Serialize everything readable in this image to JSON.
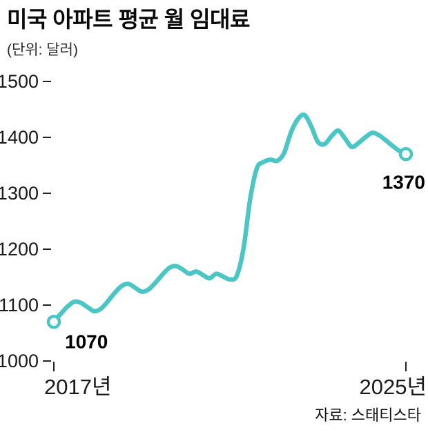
{
  "header": {
    "title": "미국 아파트 평균 월 임대료",
    "unit": "(단위: 달러)"
  },
  "footer": {
    "source": "자료: 스태티스타"
  },
  "chart_data": {
    "type": "line",
    "title": "미국 아파트 평균 월 임대료",
    "unit_label": "(단위: 달러)",
    "x_start_label": "2017년",
    "x_end_label": "2025년",
    "ylim": [
      1000,
      1500
    ],
    "yticks": [
      1000,
      1100,
      1200,
      1300,
      1400,
      1500
    ],
    "line_color": "#4cc5c5",
    "grid": false,
    "legend": false,
    "start_value": 1070,
    "end_value": 1370,
    "start_annotation": "1070",
    "end_annotation": "1370",
    "values": [
      1070,
      1084,
      1097,
      1106,
      1104,
      1096,
      1089,
      1094,
      1107,
      1122,
      1134,
      1138,
      1131,
      1124,
      1128,
      1140,
      1154,
      1166,
      1170,
      1164,
      1156,
      1160,
      1154,
      1148,
      1156,
      1151,
      1146,
      1152,
      1200,
      1290,
      1345,
      1356,
      1360,
      1358,
      1372,
      1408,
      1432,
      1440,
      1420,
      1392,
      1388,
      1402,
      1412,
      1398,
      1383,
      1390,
      1400,
      1408,
      1404,
      1395,
      1385,
      1376,
      1370
    ],
    "source": "자료: 스태티스타"
  }
}
